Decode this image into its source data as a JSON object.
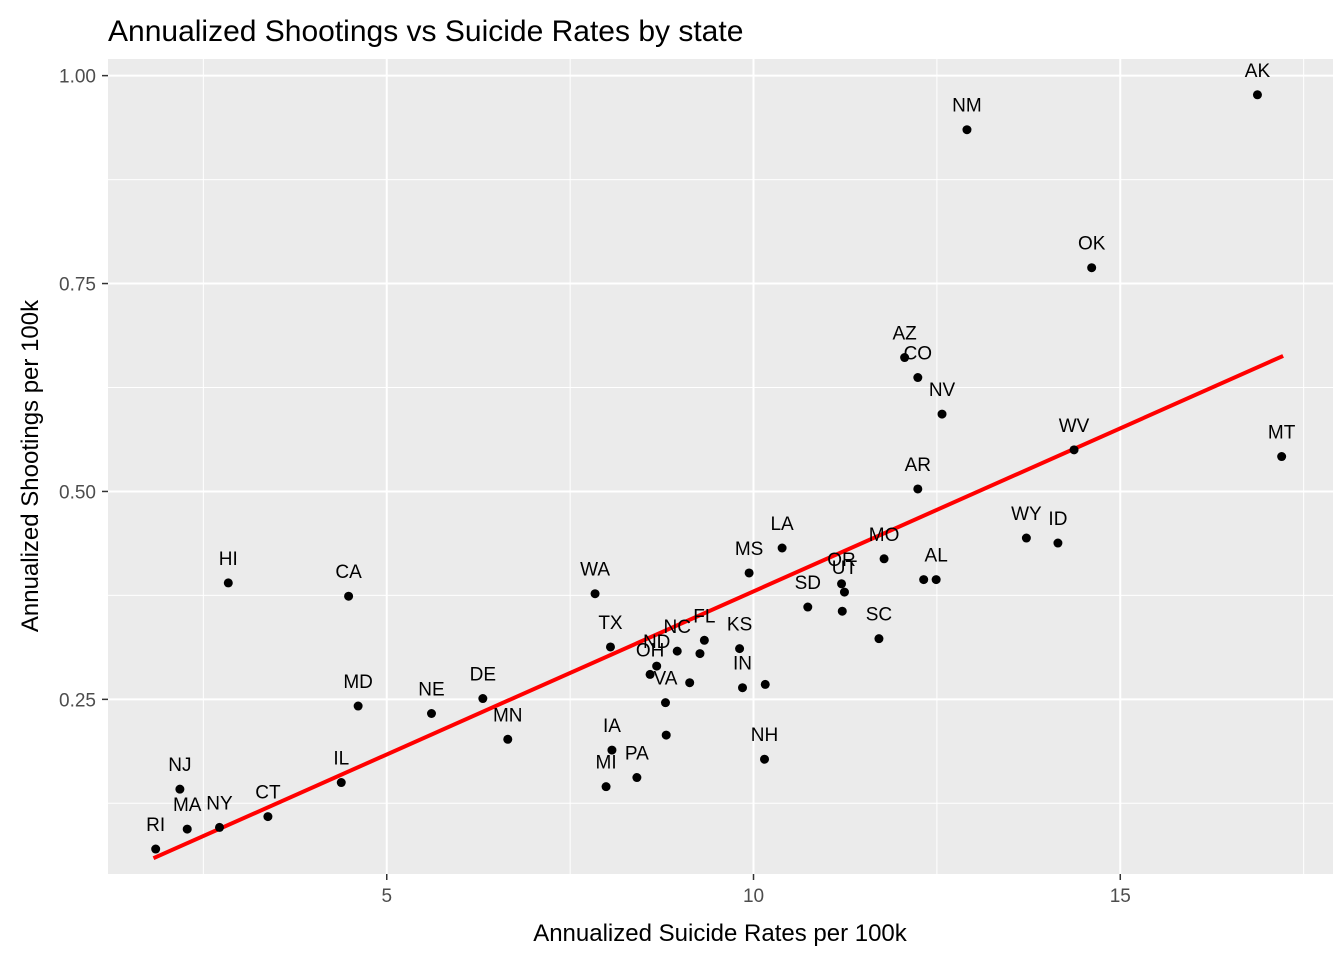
{
  "chart_data": {
    "type": "scatter",
    "title": "Annualized Shootings vs Suicide Rates by state",
    "xlabel": "Annualized Suicide Rates per 100k",
    "ylabel": "Annualized Shootings per 100k",
    "xlim": [
      1.2,
      17.9
    ],
    "ylim": [
      0.04,
      1.02
    ],
    "x_major_ticks": [
      5,
      10,
      15
    ],
    "x_minor_ticks": [
      2.5,
      7.5,
      12.5,
      17.5
    ],
    "y_major_ticks": [
      0.25,
      0.5,
      0.75,
      1.0
    ],
    "y_minor_ticks": [
      0.125,
      0.375,
      0.625,
      0.875
    ],
    "x_tick_labels": [
      "5",
      "10",
      "15"
    ],
    "y_tick_labels": [
      "0.25",
      "0.50",
      "0.75",
      "1.00"
    ],
    "grid": true,
    "panel_background": "#ebebeb",
    "point_color": "#000000",
    "trend_color": "#ff0000",
    "trend_line": {
      "x": [
        1.82,
        17.22
      ],
      "y": [
        0.059,
        0.663
      ]
    },
    "points": [
      {
        "label": "AK",
        "x": 16.87,
        "y": 0.977,
        "labeled": true
      },
      {
        "label": "NM",
        "x": 12.91,
        "y": 0.935,
        "labeled": true
      },
      {
        "label": "OK",
        "x": 14.61,
        "y": 0.769,
        "labeled": true
      },
      {
        "label": "AZ",
        "x": 12.06,
        "y": 0.661,
        "labeled": true
      },
      {
        "label": "CO",
        "x": 12.24,
        "y": 0.637,
        "labeled": true
      },
      {
        "label": "NV",
        "x": 12.57,
        "y": 0.593,
        "labeled": true
      },
      {
        "label": "WV",
        "x": 14.37,
        "y": 0.55,
        "labeled": true
      },
      {
        "label": "MT",
        "x": 17.2,
        "y": 0.542,
        "labeled": true
      },
      {
        "label": "AR",
        "x": 12.24,
        "y": 0.503,
        "labeled": true
      },
      {
        "label": "WY",
        "x": 13.72,
        "y": 0.444,
        "labeled": true
      },
      {
        "label": "ID",
        "x": 14.15,
        "y": 0.438,
        "labeled": true
      },
      {
        "label": "LA",
        "x": 10.39,
        "y": 0.432,
        "labeled": true
      },
      {
        "label": "MO",
        "x": 11.78,
        "y": 0.419,
        "labeled": true
      },
      {
        "label": "MS",
        "x": 9.94,
        "y": 0.402,
        "labeled": true
      },
      {
        "label": "AL",
        "x": 12.49,
        "y": 0.394,
        "labeled": true
      },
      {
        "label": "",
        "x": 12.32,
        "y": 0.394,
        "labeled": false
      },
      {
        "label": "HI",
        "x": 2.84,
        "y": 0.39,
        "labeled": true
      },
      {
        "label": "OR",
        "x": 11.2,
        "y": 0.389,
        "labeled": true
      },
      {
        "label": "UT",
        "x": 11.24,
        "y": 0.379,
        "labeled": true
      },
      {
        "label": "WA",
        "x": 7.84,
        "y": 0.377,
        "labeled": true
      },
      {
        "label": "CA",
        "x": 4.48,
        "y": 0.374,
        "labeled": true
      },
      {
        "label": "SD",
        "x": 10.74,
        "y": 0.361,
        "labeled": true
      },
      {
        "label": "",
        "x": 11.21,
        "y": 0.356,
        "labeled": false
      },
      {
        "label": "SC",
        "x": 11.71,
        "y": 0.323,
        "labeled": true
      },
      {
        "label": "FL",
        "x": 9.33,
        "y": 0.321,
        "labeled": true
      },
      {
        "label": "TX",
        "x": 8.05,
        "y": 0.313,
        "labeled": true
      },
      {
        "label": "KS",
        "x": 9.81,
        "y": 0.311,
        "labeled": true
      },
      {
        "label": "NC",
        "x": 8.96,
        "y": 0.308,
        "labeled": true
      },
      {
        "label": "",
        "x": 9.27,
        "y": 0.305,
        "labeled": false
      },
      {
        "label": "ND",
        "x": 8.68,
        "y": 0.29,
        "labeled": true
      },
      {
        "label": "OH",
        "x": 8.59,
        "y": 0.28,
        "labeled": true
      },
      {
        "label": "",
        "x": 9.13,
        "y": 0.27,
        "labeled": false
      },
      {
        "label": "",
        "x": 10.16,
        "y": 0.268,
        "labeled": false
      },
      {
        "label": "IN",
        "x": 9.85,
        "y": 0.264,
        "labeled": true
      },
      {
        "label": "DE",
        "x": 6.31,
        "y": 0.251,
        "labeled": true
      },
      {
        "label": "VA",
        "x": 8.8,
        "y": 0.246,
        "labeled": true
      },
      {
        "label": "MD",
        "x": 4.61,
        "y": 0.242,
        "labeled": true
      },
      {
        "label": "NE",
        "x": 5.61,
        "y": 0.233,
        "labeled": true
      },
      {
        "label": "",
        "x": 8.81,
        "y": 0.207,
        "labeled": false
      },
      {
        "label": "MN",
        "x": 6.65,
        "y": 0.202,
        "labeled": true
      },
      {
        "label": "IA",
        "x": 8.07,
        "y": 0.189,
        "labeled": true
      },
      {
        "label": "NH",
        "x": 10.15,
        "y": 0.178,
        "labeled": true
      },
      {
        "label": "PA",
        "x": 8.41,
        "y": 0.156,
        "labeled": true
      },
      {
        "label": "IL",
        "x": 4.38,
        "y": 0.15,
        "labeled": true
      },
      {
        "label": "MI",
        "x": 7.99,
        "y": 0.145,
        "labeled": true
      },
      {
        "label": "NJ",
        "x": 2.18,
        "y": 0.142,
        "labeled": true
      },
      {
        "label": "CT",
        "x": 3.38,
        "y": 0.109,
        "labeled": true
      },
      {
        "label": "NY",
        "x": 2.72,
        "y": 0.096,
        "labeled": true
      },
      {
        "label": "MA",
        "x": 2.28,
        "y": 0.094,
        "labeled": true
      },
      {
        "label": "RI",
        "x": 1.85,
        "y": 0.07,
        "labeled": true
      }
    ]
  }
}
